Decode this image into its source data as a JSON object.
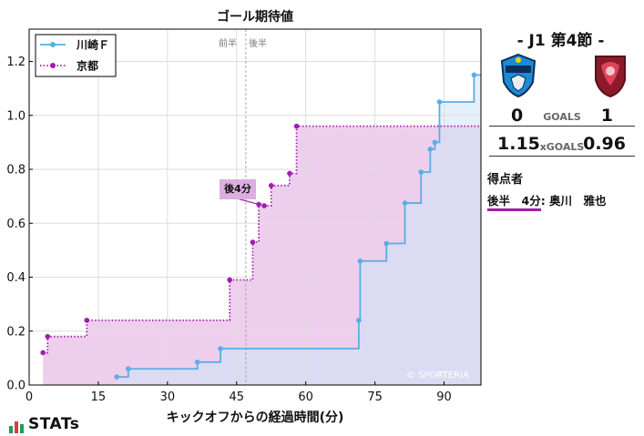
{
  "chart_data": {
    "type": "line",
    "title": "ゴール期待値",
    "xlabel": "キックオフからの経過時間(分)",
    "ylabel": "",
    "xlim": [
      0,
      98
    ],
    "ylim": [
      0,
      1.32
    ],
    "x_ticks": [
      0,
      15,
      30,
      45,
      60,
      75,
      90
    ],
    "y_ticks": [
      "0.0",
      "0.2",
      "0.4",
      "0.6",
      "0.8",
      "1.0",
      "1.2"
    ],
    "half_time_x": 47,
    "first_half_label": "前半",
    "second_half_label": "後半",
    "grid": true,
    "legend_position": "top-left",
    "watermark": "© SPORTERIA",
    "series": [
      {
        "name": "川崎Ｆ",
        "color": "#5aaee3",
        "fill": "#cfe3f7",
        "line_style": "solid",
        "points": [
          [
            19,
            0.03
          ],
          [
            21.5,
            0.06
          ],
          [
            36.5,
            0.085
          ],
          [
            41.5,
            0.135
          ],
          [
            71.5,
            0.24
          ],
          [
            71.8,
            0.46
          ],
          [
            77.5,
            0.525
          ],
          [
            81.5,
            0.675
          ],
          [
            85,
            0.79
          ],
          [
            87,
            0.875
          ],
          [
            88,
            0.9
          ],
          [
            89,
            1.05
          ],
          [
            96.5,
            1.15
          ],
          [
            98,
            1.15
          ]
        ]
      },
      {
        "name": "京都",
        "color": "#a21caf",
        "fill": "#ebc6ea",
        "line_style": "dotted",
        "points": [
          [
            3,
            0.12
          ],
          [
            4,
            0.18
          ],
          [
            12.5,
            0.24
          ],
          [
            43.5,
            0.39
          ],
          [
            48.5,
            0.53
          ],
          [
            49.8,
            0.67
          ],
          [
            51,
            0.665
          ],
          [
            52.5,
            0.74
          ],
          [
            56.5,
            0.785
          ],
          [
            58,
            0.96
          ],
          [
            98,
            0.96
          ]
        ]
      }
    ],
    "annotations": [
      {
        "text": "後4分",
        "x": 49.8,
        "y": 0.67,
        "color": "#a21caf"
      }
    ]
  },
  "match": {
    "title": "- J1 第4節 -",
    "home_team": "川崎Ｆ",
    "away_team": "京都",
    "home_goals": "0",
    "away_goals": "1",
    "goals_label": "GOALS",
    "home_xg": "1.15",
    "away_xg": "0.96",
    "xg_label": "xGOALS",
    "home_color": "#5aaee3",
    "away_color": "#a21caf"
  },
  "scorers": {
    "title": "得点者",
    "items": [
      {
        "time": "後半　4分",
        "name": ": 奥川　雅也"
      }
    ]
  },
  "brand": {
    "name": "STATs"
  }
}
